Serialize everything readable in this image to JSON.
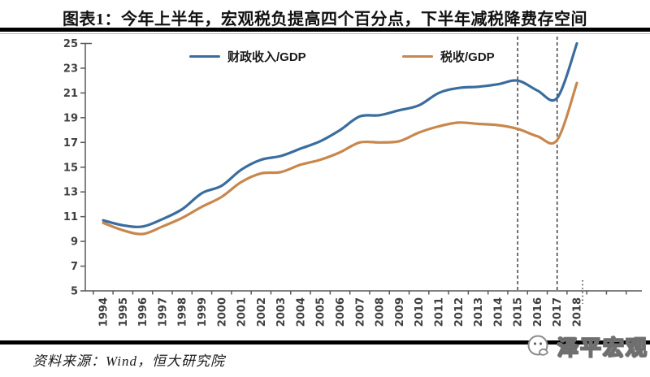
{
  "page": {
    "background": "#ffffff"
  },
  "header": {
    "title": "图表1：今年上半年，宏观税负提高四个百分点，下半年减税降费存空间"
  },
  "footer": {
    "source": "资料来源：Wind，恒大研究院",
    "watermark": "泽平宏观"
  },
  "colors": {
    "fiscal_line": "#3A6D9E",
    "tax_line": "#C8874D",
    "axis": "#595959",
    "tick_label": "#3f3f3f",
    "dashed_line": "#404040",
    "rule": "#000000"
  },
  "chart_data": {
    "type": "line",
    "title": "",
    "xlabel": "",
    "ylabel": "",
    "x": [
      1994,
      1995,
      1996,
      1997,
      1998,
      1999,
      2000,
      2001,
      2002,
      2003,
      2004,
      2005,
      2006,
      2007,
      2008,
      2009,
      2010,
      2011,
      2012,
      2013,
      2014,
      2015,
      2016,
      2017,
      2018
    ],
    "ylim": [
      5,
      25
    ],
    "yticks": [
      5,
      7,
      9,
      11,
      13,
      15,
      17,
      19,
      21,
      23,
      25
    ],
    "grid": false,
    "legend_position": "top",
    "series": [
      {
        "name": "财政收入/GDP",
        "color": "#3A6D9E",
        "values": [
          10.7,
          10.3,
          10.2,
          10.8,
          11.6,
          12.9,
          13.5,
          14.8,
          15.6,
          15.9,
          16.5,
          17.1,
          18.0,
          19.1,
          19.2,
          19.6,
          20.0,
          21.0,
          21.4,
          21.5,
          21.7,
          22.0,
          21.2,
          20.6,
          25.0
        ]
      },
      {
        "name": "税收/GDP",
        "color": "#C8874D",
        "values": [
          10.5,
          9.9,
          9.6,
          10.2,
          10.9,
          11.8,
          12.6,
          13.8,
          14.5,
          14.6,
          15.2,
          15.6,
          16.2,
          17.0,
          17.0,
          17.1,
          17.8,
          18.3,
          18.6,
          18.5,
          18.4,
          18.1,
          17.5,
          17.2,
          21.8
        ]
      }
    ],
    "annotations": {
      "dashed_vlines_x": [
        2015,
        2017
      ],
      "dotted_tick_x": 2018
    }
  }
}
